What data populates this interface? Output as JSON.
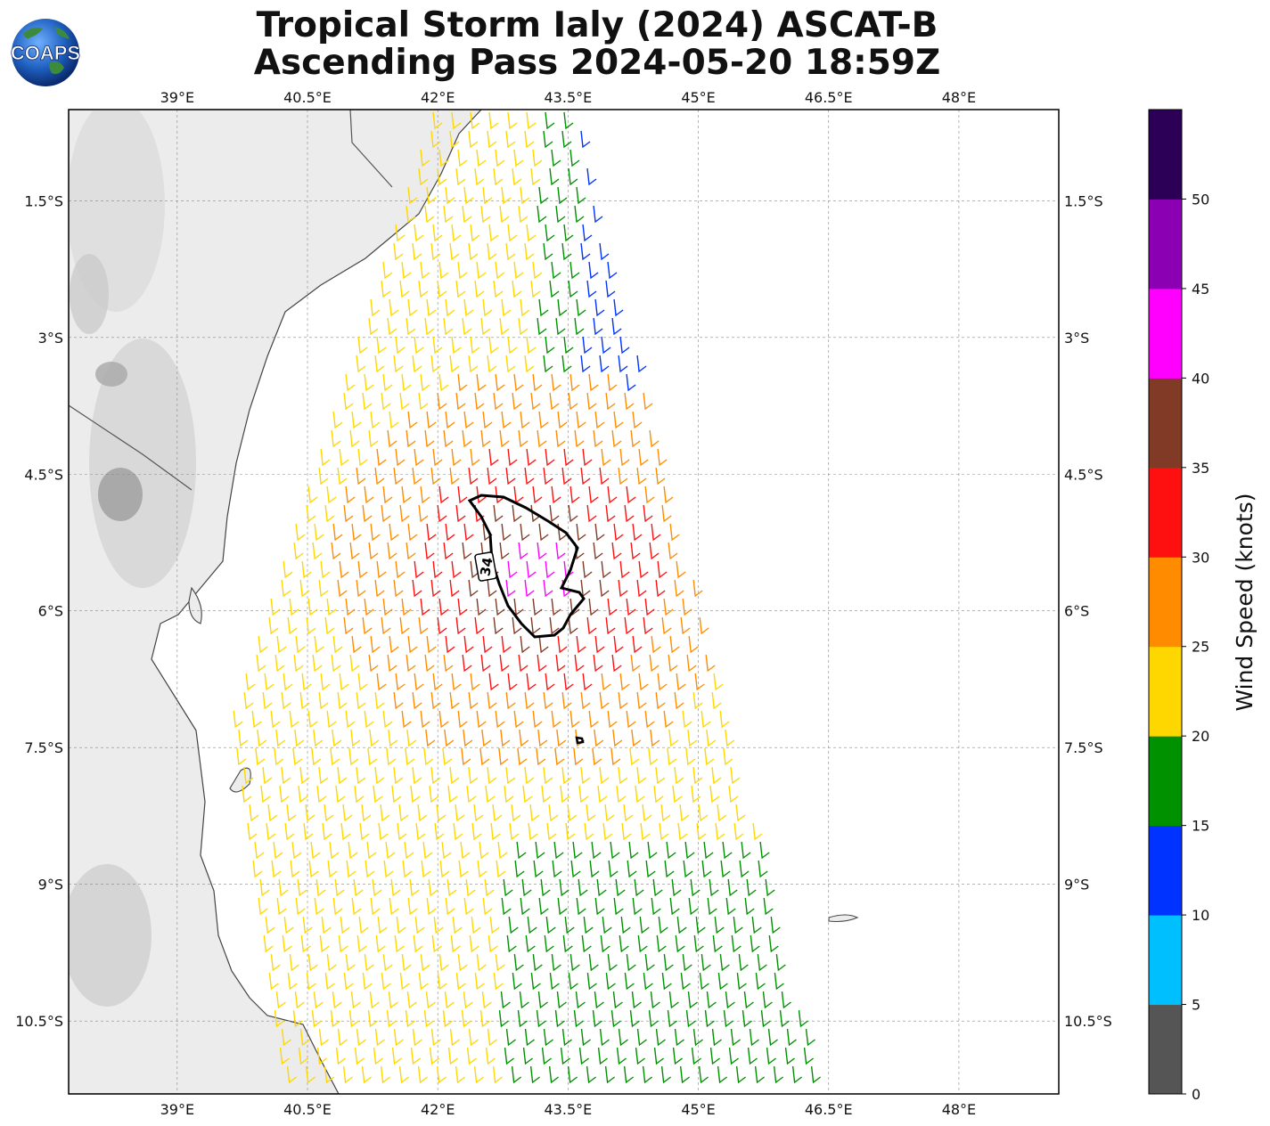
{
  "title": {
    "line1": "Tropical Storm Ialy (2024) ASCAT-B",
    "line2": "Ascending Pass 2024-05-20 18:59Z"
  },
  "logo": {
    "text": "COAPS",
    "icon": "globe-icon"
  },
  "map": {
    "lon_range": [
      37.75,
      49.15
    ],
    "lat_range": [
      -11.3,
      -0.5
    ],
    "lon_ticks": [
      "39°E",
      "40.5°E",
      "42°E",
      "43.5°E",
      "45°E",
      "46.5°E",
      "48°E"
    ],
    "lat_ticks": [
      "1.5°S",
      "3°S",
      "4.5°S",
      "6°S",
      "7.5°S",
      "9°S",
      "10.5°S"
    ],
    "grid": true,
    "gale_contour_label": "34"
  },
  "colorbar": {
    "label": "Wind Speed (knots)",
    "ticks": [
      "0",
      "5",
      "10",
      "15",
      "20",
      "25",
      "30",
      "35",
      "40",
      "45",
      "50"
    ],
    "colors": [
      "#555555",
      "#00bfff",
      "#0033ff",
      "#009100",
      "#ffd700",
      "#ff8c00",
      "#ff1010",
      "#803a25",
      "#ff00ff",
      "#8b00b2",
      "#2d0058"
    ]
  }
}
